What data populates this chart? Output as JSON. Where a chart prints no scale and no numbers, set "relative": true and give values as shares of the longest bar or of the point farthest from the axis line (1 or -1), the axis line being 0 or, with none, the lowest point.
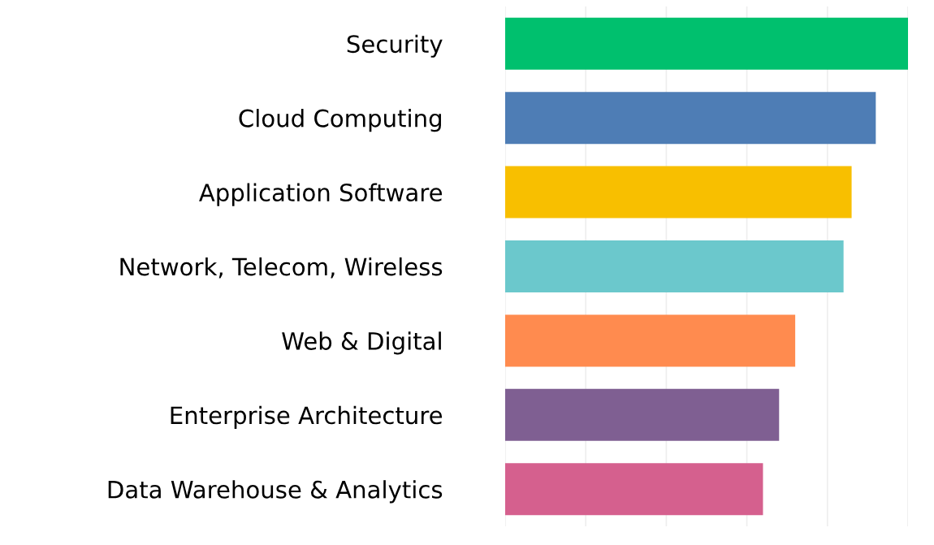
{
  "chart_data": {
    "type": "bar",
    "orientation": "horizontal",
    "relative": true,
    "categories": [
      "Security",
      "Cloud Computing",
      "Application Software",
      "Network, Telecom, Wireless",
      "Web & Digital",
      "Enterprise Architecture",
      "Data Warehouse & Analytics"
    ],
    "values": [
      1.0,
      0.92,
      0.86,
      0.84,
      0.72,
      0.68,
      0.64
    ],
    "colors": [
      "#00c06e",
      "#4e7db5",
      "#f8bf00",
      "#6bc8cc",
      "#ff8b4f",
      "#7f5f92",
      "#d5608e"
    ],
    "grid": "x",
    "tick_labels": "y"
  }
}
